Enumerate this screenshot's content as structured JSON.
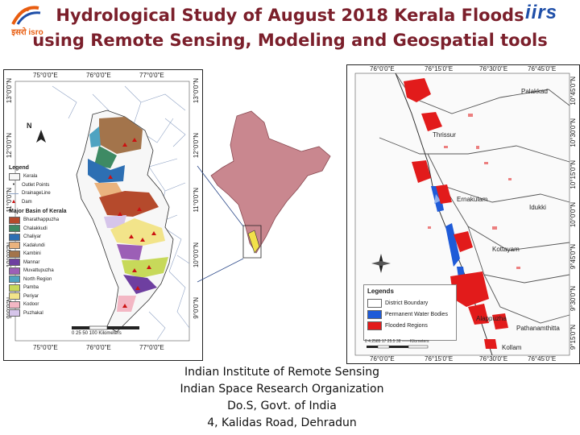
{
  "logos": {
    "isro": "इसरो isro",
    "iirs": "iirs"
  },
  "title": {
    "line1": "Hydrological Study of August 2018 Kerala Floods",
    "line2": "using Remote Sensing, Modeling and Geospatial tools"
  },
  "left_map": {
    "top_coords": [
      "75°0'0\"E",
      "76°0'0\"E",
      "77°0'0\"E"
    ],
    "bottom_coords": [
      "75°0'0\"E",
      "76°0'0\"E",
      "77°0'0\"E"
    ],
    "left_coords": [
      "13°0'0\"N",
      "12°0'0\"N",
      "11°0'0\"N",
      "10°0'0\"N",
      "9°0'0\"N"
    ],
    "right_coords": [
      "13°0'0\"N",
      "12°0'0\"N",
      "11°0'0\"N",
      "10°0'0\"N",
      "9°0'0\"N"
    ],
    "north": "N",
    "legend_title": "Legend",
    "legend_items": [
      "Kerala",
      "Outlet Points",
      "DrainageLine",
      "Dam"
    ],
    "basin_title": "Major Basin of Kerala",
    "basins": [
      {
        "name": "Bharathappuzha",
        "color": "#b54a2c"
      },
      {
        "name": "Chalakkudi",
        "color": "#3e8a64"
      },
      {
        "name": "Chaliyar",
        "color": "#2d6fb3"
      },
      {
        "name": "Kadalundi",
        "color": "#eab37e"
      },
      {
        "name": "Kambini",
        "color": "#a3744b"
      },
      {
        "name": "Mannar",
        "color": "#6e3fa0"
      },
      {
        "name": "Muvattupuzha",
        "color": "#9c5fb6"
      },
      {
        "name": "North Region",
        "color": "#4fa3c1"
      },
      {
        "name": "Pamba",
        "color": "#c7d95a"
      },
      {
        "name": "Periyar",
        "color": "#f2e48a"
      },
      {
        "name": "Kodoor",
        "color": "#f3b7c4"
      },
      {
        "name": "Puzhakal",
        "color": "#d6c5ea"
      }
    ],
    "scale": "0  25  50     100 Kilometers"
  },
  "right_map": {
    "top_coords": [
      "76°0'0\"E",
      "76°15'0\"E",
      "76°30'0\"E",
      "76°45'0\"E"
    ],
    "bottom_coords": [
      "76°0'0\"E",
      "76°15'0\"E",
      "76°30'0\"E",
      "76°45'0\"E"
    ],
    "right_coords": [
      "10°45'0\"N",
      "10°30'0\"N",
      "10°15'0\"N",
      "10°0'0\"N",
      "9°45'0\"N",
      "9°30'0\"N",
      "9°15'0\"N"
    ],
    "places": [
      "Palakkad",
      "Thrissur",
      "Ernakulam",
      "Idukki",
      "Kottayam",
      "Alappuzha",
      "Pathanamthitta",
      "Kollam"
    ],
    "legend_title": "Legends",
    "legend_items": [
      {
        "label": "District Boundary",
        "color": "#ffffff"
      },
      {
        "label": "Permanent Water Bodies",
        "color": "#1f5bd8"
      },
      {
        "label": "Flooded Regions",
        "color": "#e21b1b"
      }
    ],
    "scale": "0 4.2585  17   25.5   38   ——Kilometers"
  },
  "footer": {
    "line1": "Indian Institute of Remote Sensing",
    "line2": "Indian Space Research Organization",
    "line3": "Do.S, Govt. of India",
    "line4": "4, Kalidas Road, Dehradun"
  }
}
